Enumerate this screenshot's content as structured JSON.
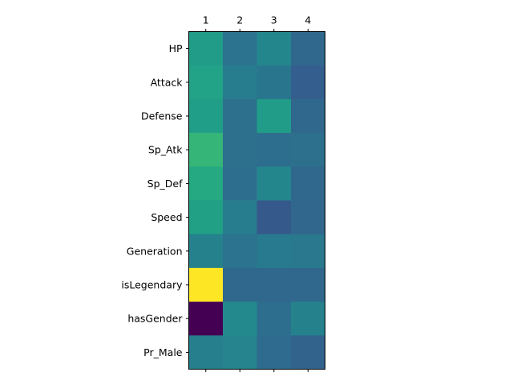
{
  "chart_data": {
    "type": "heatmap",
    "title": "",
    "xlabel": "",
    "ylabel": "",
    "x_tick_position": "top-and-bottom",
    "colormap": "viridis",
    "grid": false,
    "legend": "none",
    "columns": [
      "1",
      "2",
      "3",
      "4"
    ],
    "rows": [
      "HP",
      "Attack",
      "Defense",
      "Sp_Atk",
      "Sp_Def",
      "Speed",
      "Generation",
      "isLegendary",
      "hasGender",
      "Pr_Male"
    ],
    "value_range": [
      0,
      1
    ],
    "values": [
      [
        0.55,
        0.38,
        0.46,
        0.34
      ],
      [
        0.58,
        0.42,
        0.39,
        0.3
      ],
      [
        0.56,
        0.37,
        0.55,
        0.34
      ],
      [
        0.66,
        0.37,
        0.36,
        0.37
      ],
      [
        0.61,
        0.36,
        0.46,
        0.34
      ],
      [
        0.57,
        0.42,
        0.28,
        0.33
      ],
      [
        0.44,
        0.38,
        0.41,
        0.4
      ],
      [
        1.0,
        0.34,
        0.34,
        0.34
      ],
      [
        0.0,
        0.47,
        0.36,
        0.44
      ],
      [
        0.43,
        0.45,
        0.35,
        0.32
      ]
    ]
  }
}
